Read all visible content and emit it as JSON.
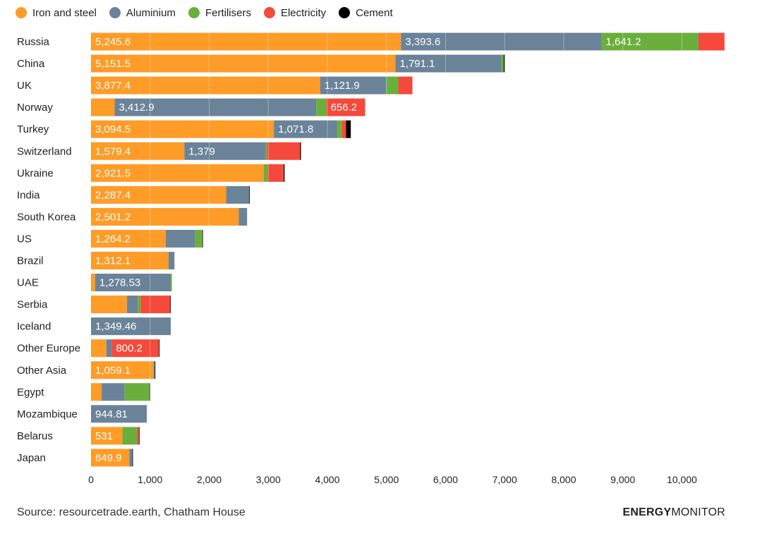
{
  "legend": [
    {
      "name": "Iron and steel",
      "color": "#FF9B27"
    },
    {
      "name": "Aluminium",
      "color": "#6A8399"
    },
    {
      "name": "Fertilisers",
      "color": "#6AAF3B"
    },
    {
      "name": "Electricity",
      "color": "#F4493B"
    },
    {
      "name": "Cement",
      "color": "#000000"
    }
  ],
  "chart_data": {
    "type": "bar",
    "orientation": "horizontal",
    "stacked": true,
    "categories": [
      "Russia",
      "China",
      "UK",
      "Norway",
      "Turkey",
      "Switzerland",
      "Ukraine",
      "India",
      "South Korea",
      "US",
      "Brazil",
      "UAE",
      "Serbia",
      "Iceland",
      "Other Europe",
      "Other Asia",
      "Egypt",
      "Mozambique",
      "Belarus",
      "Japan"
    ],
    "series": [
      {
        "name": "Iron and steel",
        "color": "#FF9B27",
        "values": [
          5245.6,
          5151.5,
          3877.4,
          400,
          3094.5,
          1579.4,
          2921.5,
          2287.4,
          2501.2,
          1264.2,
          1312.1,
          70,
          610,
          0,
          260,
          1059.1,
          180,
          0,
          531,
          649.9
        ],
        "labels": [
          "5,245.6",
          "5,151.5",
          "3,877.4",
          "",
          "3,094.5",
          "1,579.4",
          "2,921.5",
          "2,287.4",
          "2,501.2",
          "1,264.2",
          "1,312.1",
          "",
          "",
          "",
          "",
          "1,059.1",
          "",
          "",
          "531",
          "649.9"
        ]
      },
      {
        "name": "Aluminium",
        "color": "#6A8399",
        "values": [
          3393.6,
          1791.1,
          1121.9,
          3412.9,
          1071.8,
          1379,
          0,
          390,
          140,
          500,
          100,
          1278.53,
          180,
          1349.46,
          90,
          20,
          390,
          944.81,
          0,
          50
        ],
        "labels": [
          "3,393.6",
          "1,791.1",
          "1,121.9",
          "3,412.9",
          "1,071.8",
          "1,379",
          "",
          "",
          "",
          "",
          "",
          "1,278.53",
          "",
          "1,349.46",
          "",
          "",
          "",
          "944.81",
          "",
          ""
        ]
      },
      {
        "name": "Fertilisers",
        "color": "#6AAF3B",
        "values": [
          1641.2,
          40,
          200,
          170,
          80,
          20,
          70,
          0,
          0,
          120,
          0,
          20,
          50,
          0,
          0,
          0,
          420,
          0,
          250,
          0
        ],
        "labels": [
          "1,641.2",
          "",
          "",
          "",
          "",
          "",
          "",
          "",
          "",
          "",
          "",
          "",
          "",
          "",
          "",
          "",
          "",
          "",
          "",
          ""
        ]
      },
      {
        "name": "Electricity",
        "color": "#F4493B",
        "values": [
          440,
          0,
          240,
          656.2,
          70,
          560,
          270,
          0,
          0,
          0,
          0,
          0,
          500,
          0,
          800.2,
          0,
          0,
          0,
          30,
          0
        ],
        "labels": [
          "",
          "",
          "",
          "656.2",
          "",
          "",
          "",
          "",
          "",
          "",
          "",
          "",
          "",
          "",
          "800.2",
          "",
          "",
          "",
          "",
          ""
        ]
      },
      {
        "name": "Cement",
        "color": "#000000",
        "values": [
          0,
          20,
          0,
          0,
          80,
          15,
          15,
          10,
          0,
          10,
          0,
          0,
          10,
          0,
          10,
          10,
          10,
          0,
          10,
          10
        ],
        "labels": [
          "",
          "",
          "",
          "",
          "",
          "",
          "",
          "",
          "",
          "",
          "",
          "",
          "",
          "",
          "",
          "",
          "",
          "",
          "",
          ""
        ]
      }
    ],
    "xticks": [
      0,
      1000,
      2000,
      3000,
      4000,
      5000,
      6000,
      7000,
      8000,
      9000,
      10000
    ],
    "xtick_labels": [
      "0",
      "1,000",
      "2,000",
      "3,000",
      "4,000",
      "5,000",
      "6,000",
      "7,000",
      "8,000",
      "9,000",
      "10,000"
    ],
    "xlim": [
      0,
      10800
    ],
    "grid": true,
    "legend_position": "top-left",
    "xlabel": "",
    "ylabel": ""
  },
  "footer": {
    "source": "Source: resourcetrade.earth, Chatham House",
    "brand_bold": "ENERGY",
    "brand_light": "MONITOR"
  }
}
